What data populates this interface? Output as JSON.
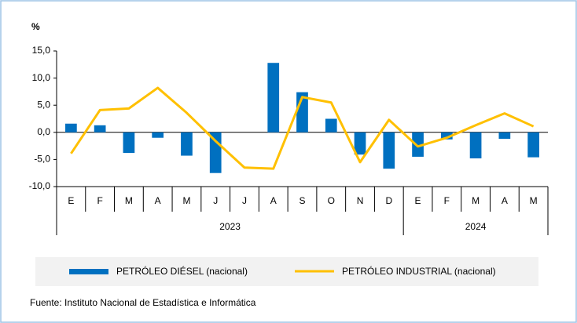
{
  "chart_data": {
    "type": "bar_line",
    "y_label": "%",
    "categories": [
      "E",
      "F",
      "M",
      "A",
      "M",
      "J",
      "J",
      "A",
      "S",
      "O",
      "N",
      "D",
      "E",
      "F",
      "M",
      "A",
      "M"
    ],
    "years": [
      "2023",
      "2024"
    ],
    "series": [
      {
        "name": "PETRÓLEO DIÉSEL (nacional)",
        "type": "bar",
        "color": "#0070c0",
        "values": [
          1.6,
          1.3,
          -3.8,
          -1.0,
          -4.3,
          -7.5,
          0.0,
          12.8,
          7.4,
          2.5,
          -4.1,
          -6.7,
          -4.5,
          -1.3,
          -4.8,
          -1.2,
          -4.6
        ]
      },
      {
        "name": "PETRÓLEO INDUSTRIAL (nacional)",
        "type": "line",
        "color": "#ffc000",
        "values": [
          -3.9,
          4.1,
          4.4,
          8.2,
          3.6,
          -1.6,
          -6.5,
          -6.7,
          6.5,
          5.5,
          -5.5,
          2.3,
          -2.6,
          -1.0,
          1.3,
          3.5,
          1.1
        ]
      }
    ],
    "ylim": [
      -10,
      15
    ],
    "yticks": [
      {
        "value": -10,
        "label": "-10,0"
      },
      {
        "value": -5,
        "label": "-5,0"
      },
      {
        "value": 0,
        "label": "0,0"
      },
      {
        "value": 5,
        "label": "5,0"
      },
      {
        "value": 10,
        "label": "10,0"
      },
      {
        "value": 15,
        "label": "15,0"
      }
    ],
    "source": "Fuente: Instituto Nacional de Estadística e Informática"
  }
}
